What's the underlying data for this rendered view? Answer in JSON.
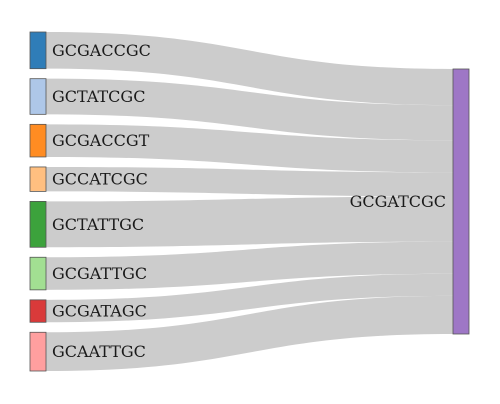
{
  "chart_data": {
    "type": "sankey",
    "target": {
      "label": "GCGATCGC",
      "color": "#9e77c6"
    },
    "sources": [
      {
        "label": "GCGACCGC",
        "value": 36,
        "color": "#2f7db8"
      },
      {
        "label": "GCTATCGC",
        "value": 35,
        "color": "#aec7e8"
      },
      {
        "label": "GCGACCGT",
        "value": 32,
        "color": "#ff8c22"
      },
      {
        "label": "GCCATCGC",
        "value": 24,
        "color": "#ffbf80"
      },
      {
        "label": "GCTATTGC",
        "value": 45,
        "color": "#3ca23c"
      },
      {
        "label": "GCGATTGC",
        "value": 32,
        "color": "#a2df92"
      },
      {
        "label": "GCGATAGC",
        "value": 22,
        "color": "#d93a3a"
      },
      {
        "label": "GCAATTGC",
        "value": 38,
        "color": "#ff9f9f"
      }
    ]
  }
}
